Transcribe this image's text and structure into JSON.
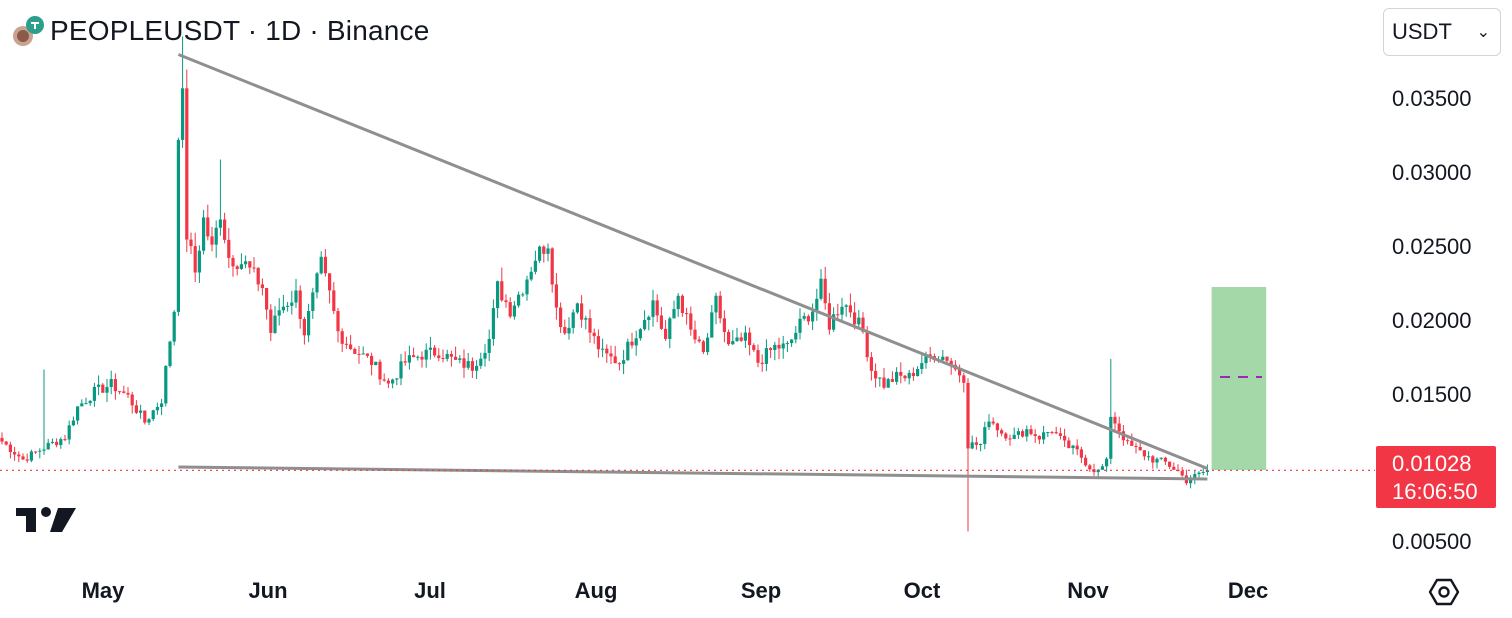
{
  "header": {
    "title": "PEOPLEUSDT · 1D · Binance"
  },
  "currency_select": {
    "value": "USDT",
    "icon": "chevron-down-icon"
  },
  "price_axis": {
    "ticks": [
      "0.03500",
      "0.03000",
      "0.02500",
      "0.02000",
      "0.01500",
      "0.00500"
    ]
  },
  "time_axis": {
    "ticks": [
      "May",
      "Jun",
      "Jul",
      "Aug",
      "Sep",
      "Oct",
      "Nov",
      "Dec"
    ]
  },
  "price_badge": {
    "price": "0.01028",
    "countdown": "16:06:50",
    "color": "#f23645"
  },
  "colors": {
    "up": "#089981",
    "down": "#f23645",
    "trendline": "#8f8f8f",
    "target_box": "#a5d8a8",
    "target_line": "#9c27b0"
  },
  "icons": {
    "brand": "tradingview-logo-icon",
    "settings": "settings-icon"
  },
  "chart_data": {
    "type": "candlestick",
    "title": "PEOPLEUSDT · 1D · Binance",
    "ylim": [
      0.0043,
      0.0399
    ],
    "x_labels": [
      "May",
      "Jun",
      "Jul",
      "Aug",
      "Sep",
      "Oct",
      "Nov",
      "Dec"
    ],
    "anchors": [
      {
        "d": 0,
        "p": 0.0122
      },
      {
        "d": 5,
        "p": 0.011
      },
      {
        "d": 10,
        "p": 0.0118
      },
      {
        "d": 15,
        "p": 0.0125
      },
      {
        "d": 18,
        "p": 0.0145
      },
      {
        "d": 22,
        "p": 0.0155
      },
      {
        "d": 26,
        "p": 0.016
      },
      {
        "d": 30,
        "p": 0.0152
      },
      {
        "d": 34,
        "p": 0.0135
      },
      {
        "d": 38,
        "p": 0.015
      },
      {
        "d": 41,
        "p": 0.021
      },
      {
        "d": 42,
        "p": 0.033
      },
      {
        "d": 43,
        "p": 0.035
      },
      {
        "d": 44,
        "p": 0.026
      },
      {
        "d": 46,
        "p": 0.0235
      },
      {
        "d": 48,
        "p": 0.027
      },
      {
        "d": 50,
        "p": 0.025
      },
      {
        "d": 52,
        "p": 0.0275
      },
      {
        "d": 54,
        "p": 0.0245
      },
      {
        "d": 58,
        "p": 0.024
      },
      {
        "d": 62,
        "p": 0.0225
      },
      {
        "d": 64,
        "p": 0.0195
      },
      {
        "d": 66,
        "p": 0.021
      },
      {
        "d": 70,
        "p": 0.022
      },
      {
        "d": 72,
        "p": 0.0195
      },
      {
        "d": 76,
        "p": 0.024
      },
      {
        "d": 78,
        "p": 0.022
      },
      {
        "d": 80,
        "p": 0.0195
      },
      {
        "d": 83,
        "p": 0.0185
      },
      {
        "d": 88,
        "p": 0.0175
      },
      {
        "d": 92,
        "p": 0.016
      },
      {
        "d": 96,
        "p": 0.0175
      },
      {
        "d": 100,
        "p": 0.018
      },
      {
        "d": 104,
        "p": 0.0182
      },
      {
        "d": 108,
        "p": 0.0175
      },
      {
        "d": 112,
        "p": 0.0172
      },
      {
        "d": 116,
        "p": 0.019
      },
      {
        "d": 118,
        "p": 0.0225
      },
      {
        "d": 121,
        "p": 0.021
      },
      {
        "d": 124,
        "p": 0.0225
      },
      {
        "d": 127,
        "p": 0.0245
      },
      {
        "d": 130,
        "p": 0.0255
      },
      {
        "d": 132,
        "p": 0.021
      },
      {
        "d": 134,
        "p": 0.0195
      },
      {
        "d": 137,
        "p": 0.0215
      },
      {
        "d": 140,
        "p": 0.0195
      },
      {
        "d": 143,
        "p": 0.018
      },
      {
        "d": 147,
        "p": 0.0175
      },
      {
        "d": 151,
        "p": 0.0195
      },
      {
        "d": 155,
        "p": 0.0215
      },
      {
        "d": 158,
        "p": 0.019
      },
      {
        "d": 161,
        "p": 0.022
      },
      {
        "d": 164,
        "p": 0.0195
      },
      {
        "d": 167,
        "p": 0.018
      },
      {
        "d": 170,
        "p": 0.0215
      },
      {
        "d": 173,
        "p": 0.0185
      },
      {
        "d": 177,
        "p": 0.019
      },
      {
        "d": 180,
        "p": 0.0175
      },
      {
        "d": 184,
        "p": 0.0185
      },
      {
        "d": 187,
        "p": 0.0185
      },
      {
        "d": 190,
        "p": 0.02
      },
      {
        "d": 193,
        "p": 0.021
      },
      {
        "d": 195,
        "p": 0.0225
      },
      {
        "d": 197,
        "p": 0.02
      },
      {
        "d": 200,
        "p": 0.0215
      },
      {
        "d": 202,
        "p": 0.021
      },
      {
        "d": 205,
        "p": 0.0195
      },
      {
        "d": 207,
        "p": 0.017
      },
      {
        "d": 210,
        "p": 0.016
      },
      {
        "d": 213,
        "p": 0.0165
      },
      {
        "d": 216,
        "p": 0.0165
      },
      {
        "d": 219,
        "p": 0.0175
      },
      {
        "d": 222,
        "p": 0.018
      },
      {
        "d": 225,
        "p": 0.0178
      },
      {
        "d": 227,
        "p": 0.017
      },
      {
        "d": 229,
        "p": 0.0165
      },
      {
        "d": 230,
        "p": 0.012
      },
      {
        "d": 233,
        "p": 0.012
      },
      {
        "d": 235,
        "p": 0.0138
      },
      {
        "d": 238,
        "p": 0.0128
      },
      {
        "d": 241,
        "p": 0.0125
      },
      {
        "d": 244,
        "p": 0.013
      },
      {
        "d": 247,
        "p": 0.0125
      },
      {
        "d": 250,
        "p": 0.013
      },
      {
        "d": 253,
        "p": 0.012
      },
      {
        "d": 256,
        "p": 0.0115
      },
      {
        "d": 259,
        "p": 0.0105
      },
      {
        "d": 261,
        "p": 0.0102
      },
      {
        "d": 263,
        "p": 0.0108
      },
      {
        "d": 264,
        "p": 0.014
      },
      {
        "d": 266,
        "p": 0.013
      },
      {
        "d": 268,
        "p": 0.012
      },
      {
        "d": 271,
        "p": 0.0115
      },
      {
        "d": 274,
        "p": 0.011
      },
      {
        "d": 277,
        "p": 0.0108
      },
      {
        "d": 280,
        "p": 0.0102
      },
      {
        "d": 282,
        "p": 0.0096
      },
      {
        "d": 285,
        "p": 0.01
      },
      {
        "d": 287,
        "p": 0.0103
      }
    ],
    "last_price": 0.01028,
    "annotations": [
      {
        "kind": "trendline",
        "from": {
          "d": 42,
          "p": 0.038
        },
        "to": {
          "d": 287,
          "p": 0.0104
        }
      },
      {
        "kind": "trendline",
        "from": {
          "d": 42,
          "p": 0.0105
        },
        "to": {
          "d": 287,
          "p": 0.0097
        }
      },
      {
        "kind": "target-box",
        "from": {
          "d": 288,
          "p": 0.0225
        },
        "to": {
          "d": 301,
          "p": 0.0103
        }
      },
      {
        "kind": "target-line",
        "from": {
          "d": 290,
          "p": 0.0165
        },
        "to": {
          "d": 300,
          "p": 0.0165
        }
      }
    ]
  }
}
